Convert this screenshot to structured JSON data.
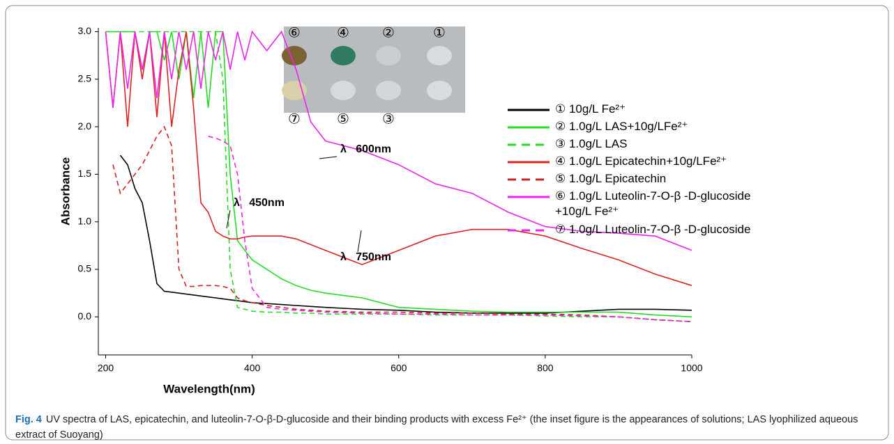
{
  "chart_data": {
    "type": "line",
    "xlabel": "Wavelength(nm)",
    "ylabel": "Absorbance",
    "x": [
      200,
      210,
      220,
      230,
      240,
      250,
      260,
      270,
      280,
      290,
      300,
      310,
      320,
      330,
      340,
      350,
      360,
      370,
      380,
      390,
      400,
      420,
      440,
      460,
      480,
      500,
      550,
      600,
      650,
      700,
      750,
      800,
      850,
      900,
      950,
      1000
    ],
    "series": [
      {
        "name": "① 10g/L Fe²⁺",
        "color": "#000000",
        "dash": false,
        "values": [
          null,
          null,
          1.7,
          1.6,
          1.35,
          1.2,
          0.8,
          0.35,
          0.27,
          0.26,
          0.25,
          0.24,
          0.23,
          0.22,
          0.21,
          0.2,
          0.19,
          0.18,
          0.17,
          0.16,
          0.15,
          0.14,
          0.13,
          0.12,
          0.11,
          0.1,
          0.08,
          0.07,
          0.05,
          0.04,
          0.04,
          0.04,
          0.06,
          0.08,
          0.08,
          0.07
        ]
      },
      {
        "name": "② 1.0g/L LAS+10g/LFe²⁺",
        "color": "#22dd22",
        "dash": false,
        "values": [
          3.0,
          3.0,
          3.0,
          3.0,
          3.0,
          2.6,
          3.0,
          3.0,
          2.7,
          3.0,
          2.5,
          3.0,
          2.3,
          3.0,
          2.2,
          3.0,
          3.0,
          1.5,
          0.8,
          0.7,
          0.6,
          0.5,
          0.4,
          0.33,
          0.28,
          0.25,
          0.2,
          0.1,
          0.08,
          0.06,
          0.05,
          0.05,
          0.05,
          0.05,
          0.02,
          0.0
        ]
      },
      {
        "name": "③ 1.0g/L LAS",
        "color": "#22dd22",
        "dash": true,
        "values": [
          3.0,
          3.0,
          3.0,
          3.0,
          3.0,
          3.0,
          3.0,
          3.0,
          3.0,
          3.0,
          3.0,
          3.0,
          3.0,
          3.0,
          3.0,
          3.0,
          2.5,
          0.5,
          0.1,
          0.08,
          0.06,
          0.05,
          0.05,
          0.04,
          0.04,
          0.03,
          0.03,
          0.03,
          0.02,
          0.02,
          0.02,
          0.01,
          0.0,
          0.0,
          -0.03,
          -0.05
        ]
      },
      {
        "name": "④ 1.0g/L Epicatechin+10g/LFe²⁺",
        "color": "#dd2222",
        "dash": false,
        "values": [
          3.0,
          2.2,
          3.0,
          2.0,
          3.0,
          2.5,
          3.0,
          2.1,
          3.0,
          2.0,
          2.6,
          3.0,
          2.2,
          1.2,
          1.1,
          0.9,
          0.85,
          0.82,
          0.82,
          0.84,
          0.85,
          0.85,
          0.85,
          0.82,
          0.76,
          0.7,
          0.55,
          0.7,
          0.85,
          0.92,
          0.92,
          0.85,
          0.72,
          0.6,
          0.45,
          0.33
        ]
      },
      {
        "name": "⑤ 1.0g/L Epicatechin",
        "color": "#cc2222",
        "dash": true,
        "values": [
          null,
          1.6,
          1.3,
          1.4,
          1.5,
          1.6,
          1.75,
          1.9,
          2.0,
          1.8,
          0.5,
          0.32,
          0.32,
          0.33,
          0.33,
          0.33,
          0.32,
          0.3,
          0.2,
          0.17,
          0.15,
          0.12,
          0.1,
          0.08,
          0.07,
          0.06,
          0.05,
          0.05,
          0.04,
          0.04,
          0.03,
          0.03,
          0.02,
          0.0,
          -0.03,
          -0.05
        ]
      },
      {
        "name": "⑥ 1.0g/L Luteolin-7-O-β -D-glucoside\n+10g/L Fe²⁺",
        "color": "#ee22ee",
        "dash": false,
        "values": [
          3.0,
          2.2,
          3.0,
          2.4,
          3.0,
          2.6,
          3.0,
          2.3,
          3.0,
          2.5,
          3.0,
          2.6,
          3.0,
          2.4,
          3.0,
          2.7,
          3.0,
          2.6,
          3.0,
          2.7,
          3.0,
          2.8,
          3.0,
          2.6,
          2.05,
          1.85,
          1.75,
          1.6,
          1.4,
          1.3,
          1.1,
          0.95,
          0.9,
          0.88,
          0.85,
          0.7
        ]
      },
      {
        "name": "⑦ 1.0g/L Luteolin-7-O-β -D-glucoside",
        "color": "#ee22ee",
        "dash": true,
        "values": [
          null,
          null,
          null,
          null,
          null,
          null,
          null,
          null,
          null,
          null,
          null,
          null,
          null,
          null,
          1.9,
          1.88,
          1.85,
          1.8,
          1.5,
          0.8,
          0.3,
          0.1,
          0.08,
          0.07,
          0.06,
          0.05,
          0.04,
          0.03,
          0.03,
          0.02,
          0.02,
          0.02,
          0.01,
          0.0,
          -0.03,
          -0.05
        ]
      }
    ],
    "xlim": [
      190,
      1000
    ],
    "ylim": [
      -0.4,
      3.04
    ],
    "xticks": [
      200,
      400,
      600,
      800,
      1000
    ],
    "yticks": [
      {
        "value": 0,
        "label": "0.0"
      },
      0.5,
      {
        "value": 1,
        "label": "1.0"
      },
      1.5,
      {
        "value": 2,
        "label": "2.0"
      },
      2.5,
      {
        "value": 3,
        "label": "3.0"
      }
    ],
    "annotations": [
      "λ   450nm",
      "λ   600nm",
      "λ   750nm"
    ],
    "inset_labels": [
      "⑥",
      "④",
      "②",
      "①",
      "⑦",
      "⑤",
      "③"
    ]
  },
  "caption": {
    "label": "Fig. 4",
    "text": "UV spectra of LAS, epicatechin, and luteolin-7-O-β-D-glucoside and their binding products with excess Fe²⁺ (the inset figure is the appearances of solutions; LAS lyophilized aqueous extract of Suoyang)"
  }
}
